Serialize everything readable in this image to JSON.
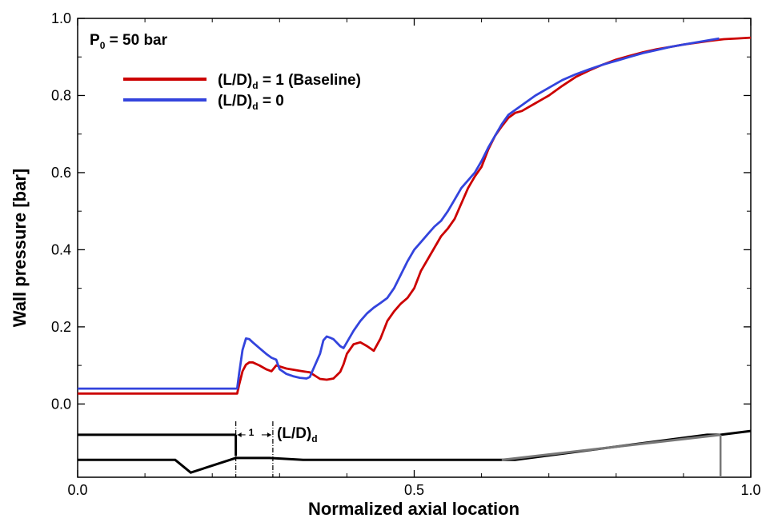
{
  "chart_data": {
    "type": "line",
    "title": "",
    "xlabel": "Normalized axial location",
    "ylabel": "Wall pressure [bar]",
    "xlim": [
      0.0,
      1.0
    ],
    "ylim": [
      -0.19,
      1.0
    ],
    "xticks": [
      "0.0",
      "0.5",
      "1.0"
    ],
    "yticks": [
      "0.0",
      "0.2",
      "0.4",
      "0.6",
      "0.8",
      "1.0"
    ],
    "xtick_values": [
      0.0,
      0.5,
      1.0
    ],
    "ytick_values": [
      0.0,
      0.2,
      0.4,
      0.6,
      0.8,
      1.0
    ],
    "condition": {
      "main": "P",
      "sub": "0",
      "rest": " = 50 bar"
    },
    "series": [
      {
        "name": "(L/D)d = 1 (Baseline)",
        "legend": {
          "prefix": "(L/D)",
          "sub": "d",
          "suffix": " = 1 (Baseline)"
        },
        "color": "#cc0000",
        "x": [
          0.0,
          0.237,
          0.24,
          0.245,
          0.25,
          0.255,
          0.26,
          0.27,
          0.28,
          0.288,
          0.295,
          0.31,
          0.33,
          0.345,
          0.36,
          0.37,
          0.38,
          0.39,
          0.395,
          0.4,
          0.41,
          0.42,
          0.43,
          0.44,
          0.45,
          0.46,
          0.47,
          0.48,
          0.49,
          0.5,
          0.51,
          0.52,
          0.53,
          0.54,
          0.55,
          0.56,
          0.57,
          0.58,
          0.59,
          0.6,
          0.61,
          0.62,
          0.63,
          0.64,
          0.65,
          0.66,
          0.67,
          0.68,
          0.69,
          0.7,
          0.72,
          0.74,
          0.76,
          0.78,
          0.8,
          0.82,
          0.84,
          0.86,
          0.88,
          0.9,
          0.92,
          0.94,
          0.96,
          0.98,
          1.0
        ],
        "y": [
          0.027,
          0.027,
          0.05,
          0.085,
          0.102,
          0.108,
          0.108,
          0.1,
          0.09,
          0.085,
          0.1,
          0.092,
          0.086,
          0.082,
          0.065,
          0.063,
          0.066,
          0.083,
          0.103,
          0.13,
          0.155,
          0.16,
          0.15,
          0.138,
          0.17,
          0.215,
          0.24,
          0.26,
          0.275,
          0.3,
          0.345,
          0.375,
          0.405,
          0.435,
          0.455,
          0.48,
          0.52,
          0.56,
          0.59,
          0.615,
          0.66,
          0.695,
          0.72,
          0.742,
          0.755,
          0.76,
          0.77,
          0.78,
          0.79,
          0.8,
          0.825,
          0.848,
          0.865,
          0.88,
          0.893,
          0.903,
          0.912,
          0.92,
          0.926,
          0.932,
          0.937,
          0.942,
          0.946,
          0.948,
          0.95
        ]
      },
      {
        "name": "(L/D)d = 0",
        "legend": {
          "prefix": "(L/D)",
          "sub": "d",
          "suffix": " = 0"
        },
        "color": "#3344dd",
        "x": [
          0.0,
          0.237,
          0.24,
          0.245,
          0.25,
          0.255,
          0.26,
          0.27,
          0.28,
          0.288,
          0.295,
          0.3,
          0.31,
          0.32,
          0.33,
          0.34,
          0.345,
          0.35,
          0.36,
          0.365,
          0.37,
          0.375,
          0.38,
          0.39,
          0.395,
          0.4,
          0.41,
          0.42,
          0.43,
          0.44,
          0.45,
          0.46,
          0.47,
          0.48,
          0.49,
          0.5,
          0.51,
          0.52,
          0.53,
          0.54,
          0.55,
          0.56,
          0.57,
          0.58,
          0.59,
          0.6,
          0.61,
          0.62,
          0.63,
          0.64,
          0.66,
          0.68,
          0.7,
          0.72,
          0.74,
          0.76,
          0.78,
          0.8,
          0.82,
          0.84,
          0.86,
          0.88,
          0.9,
          0.92,
          0.94,
          0.953
        ],
        "y": [
          0.04,
          0.04,
          0.08,
          0.14,
          0.17,
          0.168,
          0.16,
          0.145,
          0.13,
          0.12,
          0.115,
          0.09,
          0.078,
          0.072,
          0.068,
          0.066,
          0.07,
          0.09,
          0.13,
          0.165,
          0.175,
          0.172,
          0.168,
          0.15,
          0.145,
          0.16,
          0.19,
          0.215,
          0.235,
          0.25,
          0.262,
          0.275,
          0.3,
          0.335,
          0.37,
          0.4,
          0.42,
          0.44,
          0.46,
          0.475,
          0.5,
          0.53,
          0.56,
          0.58,
          0.6,
          0.63,
          0.665,
          0.695,
          0.725,
          0.75,
          0.775,
          0.8,
          0.82,
          0.84,
          0.855,
          0.868,
          0.88,
          0.89,
          0.9,
          0.91,
          0.918,
          0.926,
          0.932,
          0.938,
          0.944,
          0.948
        ]
      }
    ],
    "geometry_sketch": {
      "label": {
        "prefix": "(L/D)",
        "sub": "d"
      },
      "dimension_text": "1",
      "upper_wall": {
        "x": [
          0.0,
          0.235
        ],
        "y": [
          -0.08,
          -0.08
        ]
      },
      "step_drop": {
        "x": [
          0.235,
          0.235
        ],
        "y": [
          -0.08,
          -0.135
        ]
      },
      "lower_wall": {
        "x": [
          0.0,
          0.145,
          0.168,
          0.235,
          0.285,
          0.335,
          0.39,
          0.65,
          0.935,
          0.955,
          1.0
        ],
        "y": [
          -0.145,
          -0.145,
          -0.178,
          -0.14,
          -0.14,
          -0.145,
          -0.145,
          -0.145,
          -0.08,
          -0.08,
          -0.07
        ]
      },
      "gray_wall": {
        "x": [
          0.63,
          0.955
        ],
        "y": [
          -0.145,
          -0.08
        ]
      },
      "exit_line": {
        "x": [
          0.955,
          0.955
        ],
        "y": [
          -0.08,
          -0.19
        ]
      },
      "marker_lines": [
        0.235,
        0.29
      ]
    }
  }
}
